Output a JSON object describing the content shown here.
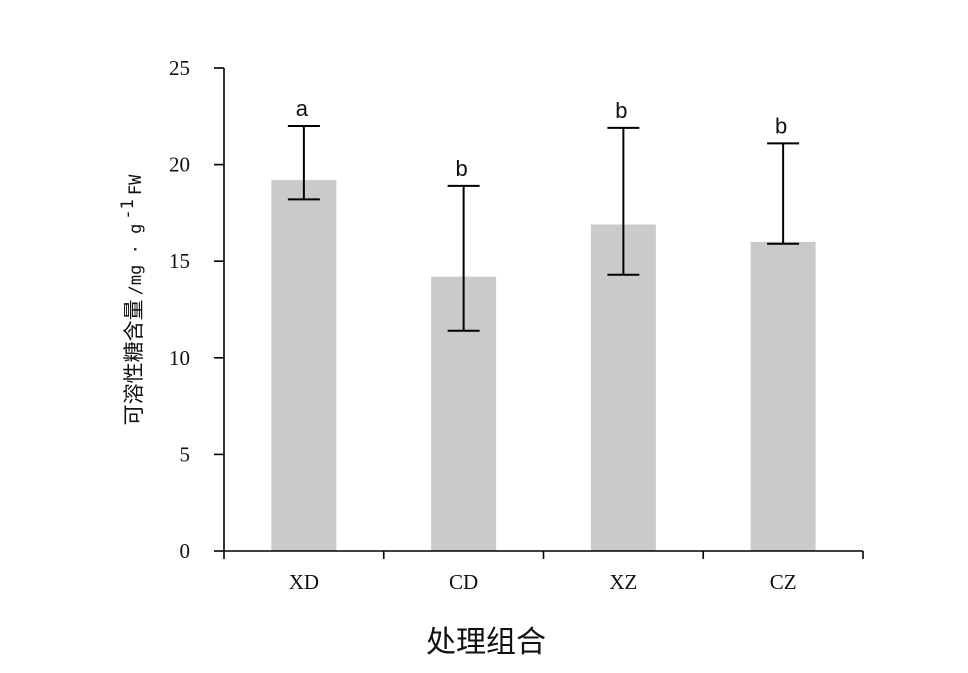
{
  "chart_data": {
    "type": "bar",
    "categories": [
      "XD",
      "CD",
      "XZ",
      "CZ"
    ],
    "values": [
      19.2,
      14.2,
      16.9,
      16.0
    ],
    "error_upper": [
      22.0,
      18.9,
      21.9,
      21.1
    ],
    "error_lower": [
      18.2,
      11.4,
      14.3,
      15.9
    ],
    "significance_letters": [
      "a",
      "b",
      "b",
      "b"
    ],
    "xlabel": "处理组合",
    "ylabel_prefix": "可溶性糖含量",
    "ylabel_unit": " /mg · g",
    "ylabel_superscript": "-1",
    "ylabel_suffix": "FW",
    "ylim": [
      0,
      25
    ],
    "yticks": [
      0,
      5,
      10,
      15,
      20,
      25
    ],
    "grid": false,
    "legend": "none",
    "bar_color": "#cccac8"
  }
}
